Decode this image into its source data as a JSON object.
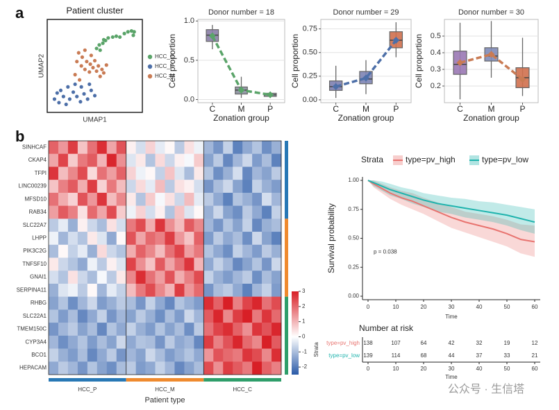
{
  "panel_labels": [
    "a",
    "b"
  ],
  "watermark": "公众号 · 生信塔",
  "chart_data": [
    {
      "type": "scatter",
      "title": "Patient cluster",
      "xlabel": "UMAP1",
      "ylabel": "UMAP2",
      "xlim": [
        0,
        10
      ],
      "ylim": [
        0,
        10
      ],
      "series": [
        {
          "name": "HCC_C",
          "color": "#5aa469",
          "x": [
            5.2,
            5.5,
            5.9,
            6.2,
            6.5,
            7.0,
            7.4,
            7.8,
            8.3,
            8.7,
            9.1,
            9.4,
            9.3,
            5.6,
            6.0
          ],
          "values": [
            7.0,
            7.4,
            7.6,
            7.9,
            8.2,
            8.3,
            8.4,
            8.3,
            8.7,
            8.9,
            9.0,
            8.9,
            8.5,
            6.8,
            8.0
          ]
        },
        {
          "name": "HCC_P",
          "color": "#4d6fa8",
          "x": [
            0.5,
            1.0,
            1.5,
            1.8,
            2.2,
            2.6,
            3.0,
            3.4,
            3.8,
            4.2,
            4.6,
            5.0,
            2.0,
            2.8,
            1.2,
            3.5,
            4.4,
            0.8
          ],
          "values": [
            1.2,
            0.8,
            1.5,
            0.6,
            1.2,
            2.0,
            1.5,
            0.9,
            1.8,
            1.2,
            2.2,
            1.6,
            2.6,
            2.9,
            2.2,
            2.6,
            2.9,
            1.9
          ]
        },
        {
          "name": "HCC_M",
          "color": "#c97b54",
          "x": [
            3.2,
            3.6,
            3.9,
            4.1,
            3.5,
            4.5,
            4.8,
            5.0,
            5.4,
            5.8,
            6.0,
            5.6,
            4.4,
            3.9,
            2.8,
            3.3,
            4.6,
            5.2,
            6.3,
            3.0
          ],
          "values": [
            6.5,
            6.0,
            6.8,
            5.5,
            5.0,
            5.2,
            4.8,
            5.6,
            5.0,
            4.6,
            4.2,
            3.8,
            4.3,
            4.6,
            4.0,
            3.4,
            6.2,
            4.4,
            5.1,
            5.5
          ]
        }
      ]
    },
    {
      "type": "box",
      "title": "Donor number = 18",
      "xlabel": "Zonation group",
      "ylabel": "Cell proportion",
      "categories": [
        "C",
        "M",
        "P"
      ],
      "ylim": [
        -0.04,
        1.02
      ],
      "yticks": [
        {
          "value": 0,
          "label": "0.0"
        },
        {
          "value": 0.5,
          "label": "0.5"
        },
        {
          "value": 1,
          "label": "1.0"
        }
      ],
      "stats": [
        {
          "min": 0.64,
          "q1": 0.74,
          "median": 0.82,
          "q3": 0.89,
          "max": 0.95
        },
        {
          "min": 0.02,
          "q1": 0.07,
          "median": 0.12,
          "q3": 0.16,
          "max": 0.29
        },
        {
          "min": 0.02,
          "q1": 0.04,
          "median": 0.06,
          "q3": 0.08,
          "max": 0.1
        }
      ],
      "means": [
        0.81,
        0.12,
        0.06
      ],
      "mean_color": "#5aa469",
      "box_colors": [
        "#8a7ea6",
        "#8a8f9e",
        "#8a8f9e"
      ]
    },
    {
      "type": "box",
      "title": "Donor number = 29",
      "xlabel": "Zonation group",
      "ylabel": "Cell proportion",
      "categories": [
        "C",
        "M",
        "P"
      ],
      "ylim": [
        -0.03,
        0.85
      ],
      "yticks": [
        {
          "value": 0,
          "label": "0.00"
        },
        {
          "value": 0.25,
          "label": "0.25"
        },
        {
          "value": 0.5,
          "label": "0.50"
        },
        {
          "value": 0.75,
          "label": "0.75"
        }
      ],
      "stats": [
        {
          "min": 0.02,
          "q1": 0.1,
          "median": 0.14,
          "q3": 0.2,
          "max": 0.36
        },
        {
          "min": 0.06,
          "q1": 0.17,
          "median": 0.22,
          "q3": 0.3,
          "max": 0.42
        },
        {
          "min": 0.45,
          "q1": 0.55,
          "median": 0.63,
          "q3": 0.72,
          "max": 0.82
        }
      ],
      "means": [
        0.14,
        0.23,
        0.63
      ],
      "mean_color": "#4d6fa8",
      "box_colors": [
        "#7d7fb0",
        "#7d84b4",
        "#d0704e"
      ]
    },
    {
      "type": "box",
      "title": "Donor number = 30",
      "xlabel": "Zonation group",
      "ylabel": "Cell proportion",
      "categories": [
        "C",
        "M",
        "P"
      ],
      "ylim": [
        0.1,
        0.6
      ],
      "yticks": [
        0.2,
        0.3,
        0.4,
        0.5
      ],
      "stats": [
        {
          "min": 0.12,
          "q1": 0.27,
          "median": 0.33,
          "q3": 0.41,
          "max": 0.58
        },
        {
          "min": 0.25,
          "q1": 0.35,
          "median": 0.38,
          "q3": 0.43,
          "max": 0.59
        },
        {
          "min": 0.14,
          "q1": 0.19,
          "median": 0.25,
          "q3": 0.31,
          "max": 0.49
        }
      ],
      "means": [
        0.34,
        0.39,
        0.24
      ],
      "mean_color": "#c97b54",
      "box_colors": [
        "#9a78b4",
        "#7f8bb8",
        "#d0704e"
      ]
    },
    {
      "type": "heatmap",
      "xlabel": "Patient type",
      "clim": [
        -2.5,
        3
      ],
      "colors": [
        "#2a5aa8",
        "#ffffff",
        "#d81f26"
      ],
      "colorbar_ticks": [
        -2,
        -1,
        0,
        1,
        2,
        3
      ],
      "row_labels": [
        "SINHCAF",
        "CKAP4",
        "TFPI",
        "LINC00239",
        "MFSD10",
        "RAB34",
        "SLC22A7",
        "LHPP",
        "PIK3C2G",
        "TNFSF10",
        "GNAI1",
        "SERPINA11",
        "RHBG",
        "SLC22A1",
        "TMEM150C",
        "CYP3A4",
        "BCO1",
        "HEPACAM"
      ],
      "row_groups": [
        {
          "color": "#2878b5",
          "count": 6
        },
        {
          "color": "#ef8a2e",
          "count": 6
        },
        {
          "color": "#2e9e6a",
          "count": 6
        }
      ],
      "column_groups": [
        {
          "name": "HCC_P",
          "color": "#2878b5",
          "count": 8
        },
        {
          "name": "HCC_M",
          "color": "#ef8a2e",
          "count": 8
        },
        {
          "name": "HCC_C",
          "color": "#2e9e6a",
          "count": 8
        }
      ],
      "values": [
        [
          2.1,
          1.4,
          2.6,
          0.8,
          1.9,
          2.8,
          1.2,
          2.3,
          0.2,
          -0.5,
          0.6,
          -0.3,
          0.1,
          -0.8,
          0.4,
          -0.2,
          -1.1,
          -1.6,
          -0.7,
          -1.9,
          -1.3,
          -0.9,
          -1.7,
          -1.2
        ],
        [
          1.2,
          2.5,
          0.7,
          1.8,
          2.2,
          1.0,
          2.9,
          1.5,
          -0.4,
          0.3,
          -0.9,
          0.5,
          -0.6,
          0.2,
          -0.1,
          0.7,
          -1.4,
          -0.8,
          -1.8,
          -1.1,
          -0.6,
          -1.5,
          -1.0,
          -1.9
        ],
        [
          2.7,
          0.9,
          1.6,
          2.4,
          0.5,
          1.9,
          1.3,
          2.1,
          0.6,
          -0.2,
          0.1,
          -0.7,
          0.8,
          -0.4,
          -1.0,
          0.3,
          -0.9,
          -1.7,
          -1.2,
          -0.5,
          -1.8,
          -1.1,
          -1.4,
          -0.8
        ],
        [
          0.8,
          1.7,
          2.2,
          1.1,
          2.6,
          0.6,
          1.8,
          0.9,
          -0.6,
          0.5,
          -0.3,
          0.9,
          -0.8,
          0.4,
          0.2,
          -0.5,
          -1.6,
          -1.0,
          -0.6,
          -1.4,
          -1.9,
          -0.7,
          -1.2,
          -1.5
        ],
        [
          1.9,
          1.1,
          0.6,
          2.3,
          1.4,
          2.7,
          0.9,
          1.6,
          0.3,
          -0.9,
          0.7,
          -0.1,
          0.4,
          -0.6,
          0.9,
          -0.3,
          -0.8,
          -1.3,
          -1.9,
          -0.9,
          -1.2,
          -1.6,
          -0.5,
          -1.1
        ],
        [
          1.3,
          2.2,
          1.7,
          0.4,
          2.0,
          1.2,
          2.4,
          0.7,
          -0.2,
          0.6,
          -0.5,
          0.2,
          -0.9,
          0.8,
          -0.4,
          0.1,
          -1.2,
          -0.6,
          -1.4,
          -1.7,
          -0.8,
          -1.3,
          -1.9,
          -0.7
        ],
        [
          -0.8,
          -0.3,
          -1.2,
          0.2,
          -0.6,
          -1.0,
          0.4,
          -0.5,
          1.8,
          2.4,
          1.1,
          2.7,
          1.5,
          0.9,
          2.2,
          1.6,
          -1.1,
          -1.6,
          -0.9,
          -1.4,
          -0.7,
          -1.8,
          -1.2,
          -1.0
        ],
        [
          -0.2,
          -1.1,
          -0.5,
          -0.9,
          0.3,
          -0.4,
          -1.3,
          0.1,
          2.3,
          1.2,
          2.0,
          1.7,
          2.6,
          1.4,
          0.8,
          2.1,
          -1.5,
          -0.8,
          -1.3,
          -1.0,
          -1.7,
          -0.6,
          -1.4,
          -1.9
        ],
        [
          -1.0,
          0.1,
          -0.7,
          -0.3,
          -1.2,
          0.5,
          -0.6,
          -0.9,
          1.1,
          2.1,
          1.6,
          0.9,
          1.9,
          2.5,
          1.3,
          1.8,
          -0.9,
          -1.3,
          -1.7,
          -0.7,
          -1.1,
          -1.5,
          -0.8,
          -1.2
        ],
        [
          0.3,
          -0.6,
          -0.9,
          -1.3,
          -0.2,
          -0.8,
          0.2,
          -0.4,
          2.5,
          1.5,
          0.8,
          2.2,
          1.2,
          1.9,
          2.7,
          1.0,
          -1.3,
          -0.7,
          -1.1,
          -1.8,
          -1.4,
          -0.9,
          -1.6,
          -0.6
        ],
        [
          -0.5,
          -0.9,
          0.4,
          -0.6,
          -1.0,
          -0.1,
          -0.8,
          0.3,
          1.6,
          2.8,
          1.9,
          1.3,
          2.3,
          1.1,
          1.7,
          2.4,
          -0.7,
          -1.2,
          -1.5,
          -1.1,
          -0.8,
          -1.7,
          -1.0,
          -1.4
        ],
        [
          -1.2,
          -0.4,
          -0.2,
          -0.8,
          0.1,
          -1.1,
          -0.3,
          -0.7,
          0.9,
          1.8,
          2.4,
          1.6,
          1.0,
          2.6,
          1.4,
          2.0,
          -1.6,
          -1.0,
          -0.8,
          -1.3,
          -1.9,
          -1.1,
          -0.7,
          -1.5
        ],
        [
          -1.4,
          -0.9,
          -1.7,
          -1.1,
          -0.6,
          -1.5,
          -1.2,
          -0.8,
          -1.0,
          -1.6,
          -0.7,
          -1.3,
          -1.8,
          -0.9,
          -1.2,
          -1.5,
          2.8,
          2.1,
          3.0,
          1.7,
          2.5,
          2.9,
          1.9,
          2.4
        ],
        [
          -0.9,
          -1.5,
          -1.0,
          -1.8,
          -1.3,
          -0.7,
          -1.6,
          -1.1,
          -1.4,
          -0.8,
          -1.2,
          -1.7,
          -1.0,
          -1.5,
          -0.6,
          -1.1,
          2.2,
          2.9,
          1.6,
          2.6,
          3.0,
          1.8,
          2.7,
          2.0
        ],
        [
          -1.6,
          -1.1,
          -0.8,
          -1.4,
          -1.0,
          -1.8,
          -0.9,
          -1.3,
          -0.7,
          -1.2,
          -1.5,
          -0.9,
          -1.4,
          -1.0,
          -1.7,
          -0.8,
          1.9,
          2.5,
          2.8,
          2.1,
          1.5,
          2.7,
          2.3,
          2.9
        ],
        [
          -1.1,
          -1.7,
          -1.3,
          -0.9,
          -1.5,
          -1.0,
          -1.4,
          -0.6,
          -1.3,
          -0.9,
          -1.0,
          -1.6,
          -0.8,
          -1.3,
          -1.1,
          -1.8,
          2.6,
          1.7,
          2.3,
          2.9,
          2.0,
          1.6,
          3.0,
          2.2
        ],
        [
          -0.7,
          -1.2,
          -1.5,
          -1.0,
          -1.8,
          -1.3,
          -0.8,
          -1.6,
          -1.1,
          -1.4,
          -0.6,
          -1.0,
          -1.5,
          -1.2,
          -0.9,
          -1.3,
          1.4,
          2.3,
          2.0,
          1.8,
          2.7,
          2.4,
          1.6,
          2.8
        ],
        [
          -1.3,
          -0.8,
          -1.1,
          -1.6,
          -0.9,
          -1.4,
          -1.7,
          -1.0,
          -0.8,
          -1.5,
          -1.3,
          -0.7,
          -1.1,
          -1.8,
          -1.4,
          -1.0,
          2.4,
          1.5,
          2.6,
          2.2,
          1.8,
          3.0,
          2.1,
          1.7
        ]
      ]
    },
    {
      "type": "survival",
      "xlabel": "Time",
      "ylabel": "Survival probability",
      "legend_title": "Strata",
      "annotation": "p = 0.038",
      "xlim": [
        -2,
        62
      ],
      "ylim": [
        -0.03,
        1.03
      ],
      "xticks": [
        0,
        10,
        20,
        30,
        40,
        50,
        60
      ],
      "yticks": [
        {
          "value": 0,
          "label": "0.00"
        },
        {
          "value": 0.25,
          "label": "0.25"
        },
        {
          "value": 0.5,
          "label": "0.50"
        },
        {
          "value": 0.75,
          "label": "0.75"
        },
        {
          "value": 1,
          "label": "1.00"
        }
      ],
      "series": [
        {
          "name": "type=pv_high",
          "color": "#e8736f",
          "x": [
            0,
            2,
            5,
            8,
            12,
            16,
            20,
            25,
            30,
            35,
            40,
            45,
            50,
            55,
            60
          ],
          "values": [
            1,
            0.97,
            0.93,
            0.89,
            0.85,
            0.82,
            0.78,
            0.73,
            0.68,
            0.64,
            0.61,
            0.58,
            0.54,
            0.49,
            0.47
          ],
          "lower": [
            1,
            0.94,
            0.89,
            0.84,
            0.79,
            0.75,
            0.71,
            0.65,
            0.59,
            0.55,
            0.51,
            0.47,
            0.43,
            0.37,
            0.34
          ],
          "upper": [
            1,
            1,
            0.97,
            0.94,
            0.91,
            0.89,
            0.85,
            0.81,
            0.77,
            0.73,
            0.71,
            0.69,
            0.66,
            0.62,
            0.61
          ]
        },
        {
          "name": "type=pv_low",
          "color": "#1fb3ad",
          "x": [
            0,
            2,
            5,
            8,
            12,
            16,
            20,
            25,
            30,
            35,
            40,
            45,
            50,
            55,
            60
          ],
          "values": [
            1,
            0.98,
            0.95,
            0.92,
            0.89,
            0.86,
            0.83,
            0.8,
            0.78,
            0.76,
            0.74,
            0.72,
            0.7,
            0.67,
            0.64
          ],
          "lower": [
            1,
            0.95,
            0.91,
            0.87,
            0.84,
            0.8,
            0.77,
            0.73,
            0.71,
            0.68,
            0.66,
            0.64,
            0.61,
            0.57,
            0.54
          ],
          "upper": [
            1,
            1,
            0.99,
            0.97,
            0.94,
            0.92,
            0.89,
            0.87,
            0.85,
            0.84,
            0.82,
            0.81,
            0.79,
            0.77,
            0.75
          ]
        }
      ],
      "risk_table": {
        "title": "Number at risk",
        "ylabel": "Strata",
        "xlabel": "Time",
        "times": [
          0,
          10,
          20,
          30,
          40,
          50,
          60
        ],
        "rows": [
          {
            "name": "type=pv_high",
            "values": [
              138,
              107,
              64,
              42,
              32,
              19,
              12
            ]
          },
          {
            "name": "type=pv_low",
            "values": [
              139,
              114,
              68,
              44,
              37,
              33,
              21
            ]
          }
        ]
      }
    }
  ]
}
